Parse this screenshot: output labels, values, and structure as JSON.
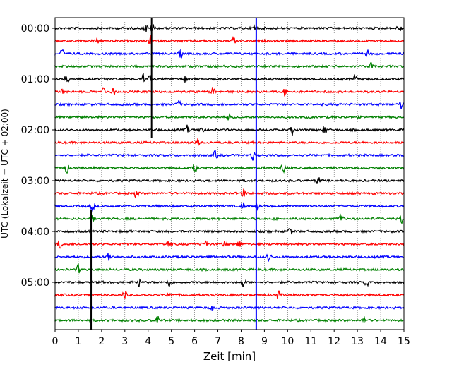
{
  "chart_data": {
    "type": "line",
    "title": "",
    "xlabel": "Zeit  [min]",
    "ylabel": "UTC (Lokalzeit = UTC + 02:00)",
    "xlim": [
      0,
      15
    ],
    "x_ticks": [
      0,
      1,
      2,
      3,
      4,
      5,
      6,
      7,
      8,
      9,
      10,
      11,
      12,
      13,
      14,
      15
    ],
    "y_tick_labels": [
      "00:00",
      "01:00",
      "02:00",
      "03:00",
      "04:00",
      "05:00"
    ],
    "trace_interval_min": 15,
    "trace_colors": [
      "#000000",
      "#ff0000",
      "#0000ff",
      "#008000"
    ],
    "grid": "vertical dotted at each minute",
    "traces": [
      {
        "utc_start": "00:00",
        "color": "black",
        "events_min": [
          3.9,
          4.2,
          8.6,
          14.8
        ]
      },
      {
        "utc_start": "00:15",
        "color": "red",
        "events_min": [
          1.8,
          4.1,
          7.7
        ]
      },
      {
        "utc_start": "00:30",
        "color": "blue",
        "events_min": [
          0.3,
          5.4,
          13.4
        ]
      },
      {
        "utc_start": "00:45",
        "color": "green",
        "events_min": [
          13.6
        ]
      },
      {
        "utc_start": "01:00",
        "color": "black",
        "events_min": [
          0.5,
          3.8,
          4.1,
          5.6,
          12.9
        ]
      },
      {
        "utc_start": "01:15",
        "color": "red",
        "events_min": [
          0.3,
          2.1,
          2.5,
          6.8,
          9.9
        ]
      },
      {
        "utc_start": "01:30",
        "color": "blue",
        "events_min": [
          5.3,
          14.9
        ]
      },
      {
        "utc_start": "01:45",
        "color": "green",
        "events_min": [
          7.5
        ]
      },
      {
        "utc_start": "02:00",
        "color": "black",
        "events_min": [
          5.7,
          6.3,
          10.2,
          11.6
        ]
      },
      {
        "utc_start": "02:15",
        "color": "red",
        "events_min": [
          6.1
        ]
      },
      {
        "utc_start": "02:30",
        "color": "blue",
        "events_min": [
          6.9,
          8.5
        ]
      },
      {
        "utc_start": "02:45",
        "color": "green",
        "events_min": [
          0.5,
          6.0,
          9.8
        ]
      },
      {
        "utc_start": "03:00",
        "color": "black",
        "events_min": [
          11.3
        ]
      },
      {
        "utc_start": "03:15",
        "color": "red",
        "events_min": [
          3.5,
          8.1
        ]
      },
      {
        "utc_start": "03:30",
        "color": "blue",
        "events_min": [
          1.6,
          8.1,
          8.7
        ]
      },
      {
        "utc_start": "03:45",
        "color": "green",
        "events_min": [
          1.6,
          12.3,
          14.9
        ]
      },
      {
        "utc_start": "04:00",
        "color": "black",
        "events_min": [
          10.1
        ]
      },
      {
        "utc_start": "04:15",
        "color": "red",
        "events_min": [
          0.2,
          4.9,
          6.5,
          7.3,
          7.9
        ]
      },
      {
        "utc_start": "04:30",
        "color": "blue",
        "events_min": [
          2.3,
          9.2
        ]
      },
      {
        "utc_start": "04:45",
        "color": "green",
        "events_min": [
          1.0
        ]
      },
      {
        "utc_start": "05:00",
        "color": "black",
        "events_min": [
          3.6,
          4.9,
          8.1,
          13.4
        ]
      },
      {
        "utc_start": "05:15",
        "color": "red",
        "events_min": [
          3.0,
          4.9,
          9.6
        ]
      },
      {
        "utc_start": "05:30",
        "color": "blue",
        "events_min": [
          6.8
        ]
      },
      {
        "utc_start": "05:45",
        "color": "green",
        "events_min": [
          4.4,
          13.3
        ]
      }
    ],
    "vertical_markers": [
      {
        "x_min": 4.15,
        "color": "#000000",
        "from_trace": "00:00",
        "to_trace": "02:00"
      },
      {
        "x_min": 8.65,
        "color": "#0000ff",
        "from_trace": "00:00",
        "to_trace": "05:45"
      },
      {
        "x_min": 1.55,
        "color": "#000000",
        "from_trace": "03:45",
        "to_trace": "05:45"
      }
    ]
  }
}
